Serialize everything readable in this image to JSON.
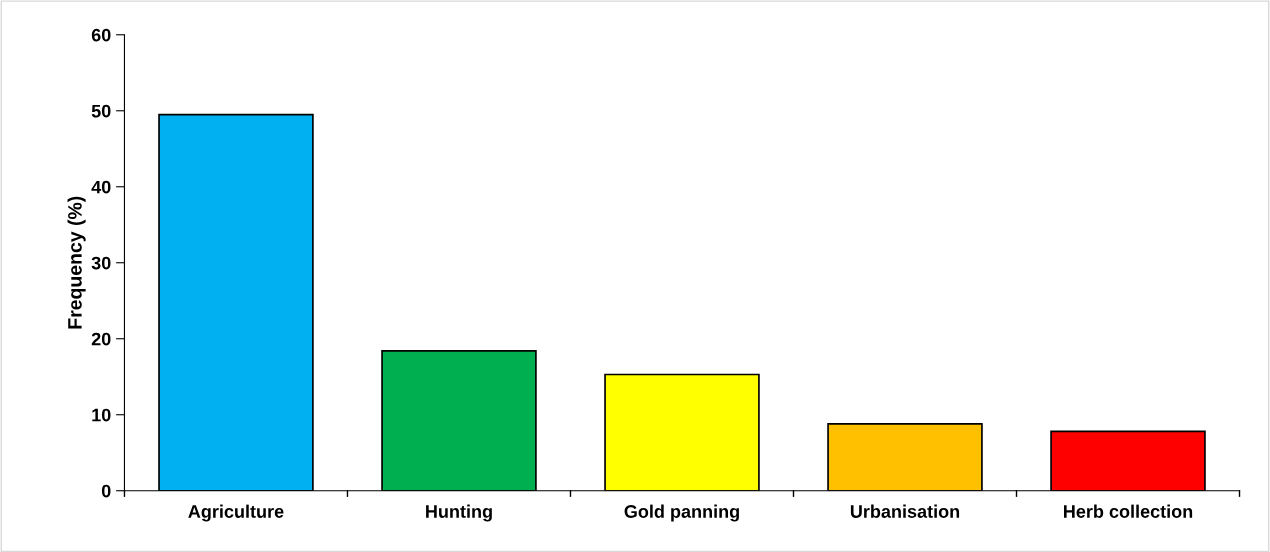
{
  "chart_data": {
    "type": "bar",
    "ylabel": "Frequency (%)",
    "categories": [
      "Agriculture",
      "Hunting",
      "Gold panning",
      "Urbanisation",
      "Herb collection"
    ],
    "values": [
      49.5,
      18.4,
      15.3,
      8.8,
      7.8
    ],
    "colors": [
      "#00b0f0",
      "#00b050",
      "#ffff00",
      "#ffc000",
      "#ff0000"
    ],
    "ylim": [
      0,
      60
    ],
    "yticks": [
      0,
      10,
      20,
      30,
      40,
      50,
      60
    ],
    "grid": false,
    "legend": false
  }
}
